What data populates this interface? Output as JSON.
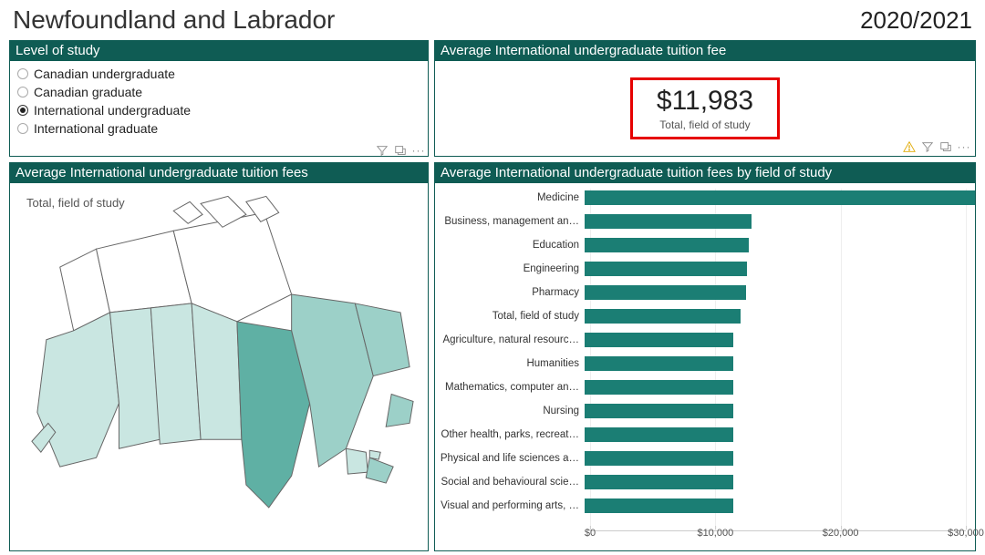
{
  "colors": {
    "accent": "#0f5c54",
    "bar_fill": "#1b7e74",
    "map_light": "#c9e6e1",
    "map_mid": "#9cd0c8",
    "map_dark": "#5fb0a4",
    "map_border": "#5a5a5a",
    "kpi_border": "#e60000",
    "text": "#222222",
    "grid": "#eeeeee"
  },
  "header": {
    "title": "Newfoundland and Labrador",
    "year": "2020/2021"
  },
  "slicer": {
    "title": "Level of study",
    "options": [
      {
        "label": "Canadian undergraduate",
        "selected": false
      },
      {
        "label": "Canadian graduate",
        "selected": false
      },
      {
        "label": "International undergraduate",
        "selected": true
      },
      {
        "label": "International graduate",
        "selected": false
      }
    ]
  },
  "kpi": {
    "title": "Average International undergraduate tuition fee",
    "value": "$11,983",
    "subtitle": "Total, field of study"
  },
  "map": {
    "title": "Average International undergraduate tuition fees",
    "legend_label": "Total, field of study",
    "provinces": [
      {
        "name": "British Columbia",
        "shade": "light"
      },
      {
        "name": "Alberta",
        "shade": "light"
      },
      {
        "name": "Saskatchewan",
        "shade": "light"
      },
      {
        "name": "Manitoba",
        "shade": "light"
      },
      {
        "name": "Ontario",
        "shade": "dark"
      },
      {
        "name": "Quebec",
        "shade": "mid"
      },
      {
        "name": "New Brunswick",
        "shade": "light"
      },
      {
        "name": "Nova Scotia",
        "shade": "mid"
      },
      {
        "name": "Prince Edward Island",
        "shade": "light"
      },
      {
        "name": "Newfoundland and Labrador",
        "shade": "mid"
      },
      {
        "name": "Yukon",
        "shade": "none"
      },
      {
        "name": "Northwest Territories",
        "shade": "none"
      },
      {
        "name": "Nunavut",
        "shade": "none"
      }
    ]
  },
  "barchart": {
    "title": "Average International undergraduate tuition fees by field of study",
    "x_min": 0,
    "x_max": 30000,
    "x_ticks": [
      0,
      10000,
      20000,
      30000
    ],
    "x_tick_labels": [
      "$0",
      "$10,000",
      "$20,000",
      "$30,000"
    ],
    "bar_color": "#1b7e74",
    "rows": [
      {
        "label": "Medicine",
        "value": 30000
      },
      {
        "label": "Business, management an…",
        "value": 12800
      },
      {
        "label": "Education",
        "value": 12600
      },
      {
        "label": "Engineering",
        "value": 12500
      },
      {
        "label": "Pharmacy",
        "value": 12400
      },
      {
        "label": "Total, field of study",
        "value": 11983
      },
      {
        "label": "Agriculture, natural resourc…",
        "value": 11460
      },
      {
        "label": "Humanities",
        "value": 11460
      },
      {
        "label": "Mathematics, computer an…",
        "value": 11460
      },
      {
        "label": "Nursing",
        "value": 11460
      },
      {
        "label": "Other health, parks, recreat…",
        "value": 11460
      },
      {
        "label": "Physical and life sciences a…",
        "value": 11460
      },
      {
        "label": "Social and behavioural scie…",
        "value": 11460
      },
      {
        "label": "Visual and performing arts, …",
        "value": 11460
      }
    ]
  }
}
